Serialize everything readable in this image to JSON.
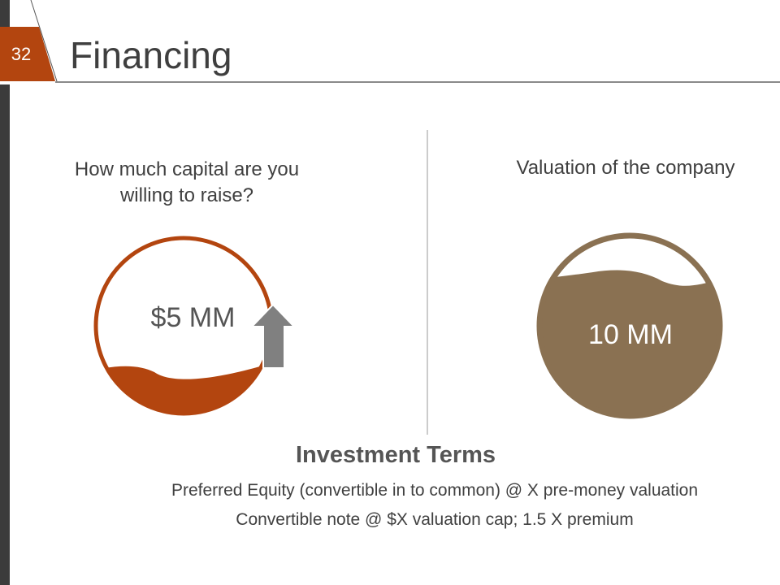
{
  "slide": {
    "number": "32",
    "title": "Financing"
  },
  "left_panel": {
    "question": "How much capital are you willing to raise?",
    "value": "$5 MM",
    "icon": "arrow-up-icon"
  },
  "right_panel": {
    "question": "Valuation of the company",
    "value": "10 MM"
  },
  "investment_terms": {
    "title": "Investment Terms",
    "items": [
      "Preferred Equity (convertible in to common) @ X pre-money valuation",
      "Convertible note @ $X valuation cap; 1.5 X premium"
    ]
  },
  "colors": {
    "accent": "#B3450F",
    "valuation": "#8A7152",
    "arrow": "#808080",
    "sidebar": "#3B3B3B"
  }
}
